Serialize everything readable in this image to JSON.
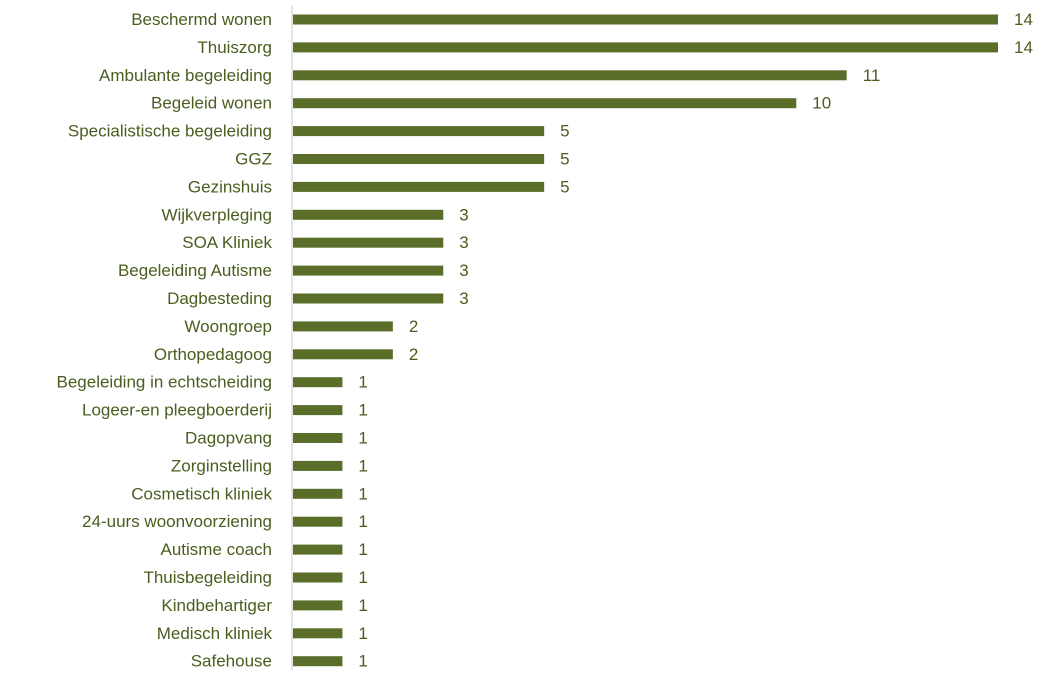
{
  "colors": {
    "bar": "#5a6e2a",
    "label_text": "#4a5e1f",
    "axis_line": "#c8c8c8"
  },
  "chart_data": {
    "type": "bar",
    "orientation": "horizontal",
    "title": "",
    "xlabel": "",
    "ylabel": "",
    "xlim": [
      0,
      14
    ],
    "grid": false,
    "legend": "none",
    "categories": [
      "Beschermd wonen",
      "Thuiszorg",
      "Ambulante begeleiding",
      "Begeleid wonen",
      "Specialistische begeleiding",
      "GGZ",
      "Gezinshuis",
      "Wijkverpleging",
      "SOA Kliniek",
      "Begeleiding Autisme",
      "Dagbesteding",
      "Woongroep",
      "Orthopedagoog",
      "Begeleiding in echtscheiding",
      "Logeer-en pleegboerderij",
      "Dagopvang",
      "Zorginstelling",
      "Cosmetisch kliniek",
      "24-uurs woonvoorziening",
      "Autisme coach",
      "Thuisbegeleiding",
      "Kindbehartiger",
      "Medisch kliniek",
      "Safehouse"
    ],
    "values": [
      14,
      14,
      11,
      10,
      5,
      5,
      5,
      3,
      3,
      3,
      3,
      2,
      2,
      1,
      1,
      1,
      1,
      1,
      1,
      1,
      1,
      1,
      1,
      1
    ],
    "data_labels": [
      "14",
      "14",
      "11",
      "10",
      "5",
      "5",
      "5",
      "3",
      "3",
      "3",
      "3",
      "2",
      "2",
      "1",
      "1",
      "1",
      "1",
      "1",
      "1",
      "1",
      "1",
      "1",
      "1",
      "1"
    ]
  }
}
